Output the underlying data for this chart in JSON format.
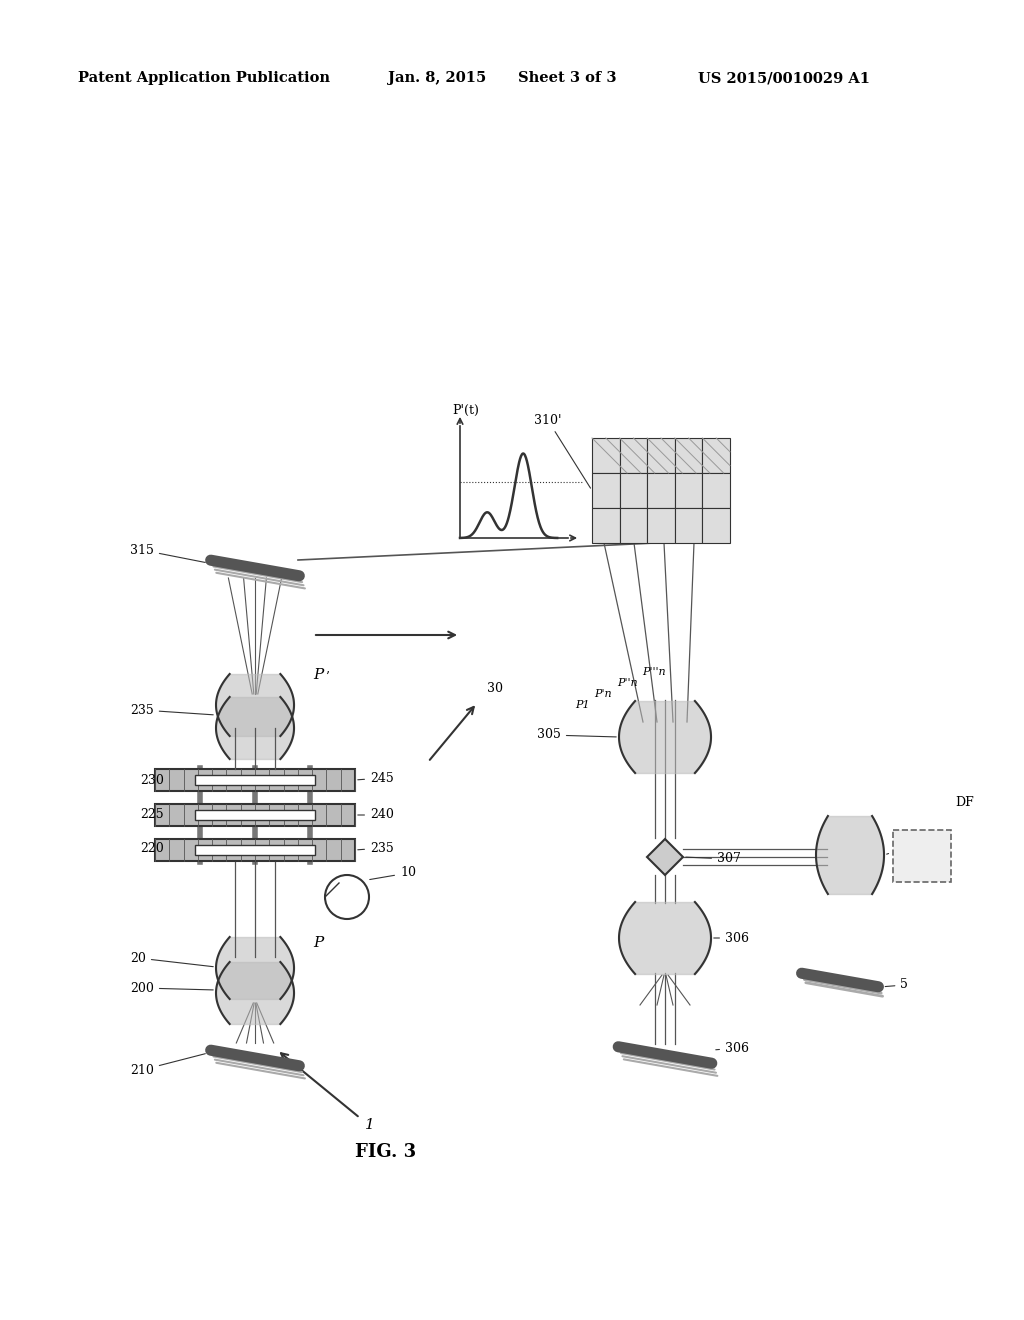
{
  "bg_color": "#ffffff",
  "header_text1": "Patent Application Publication",
  "header_text2": "Jan. 8, 2015",
  "header_text3": "Sheet 3 of 3",
  "header_text4": "US 2015/0010029 A1",
  "fig_label": "FIG. 3",
  "line_color": "#555555",
  "dark_color": "#333333",
  "gray_color": "#999999",
  "light_gray": "#cccccc",
  "mid_gray": "#888888"
}
